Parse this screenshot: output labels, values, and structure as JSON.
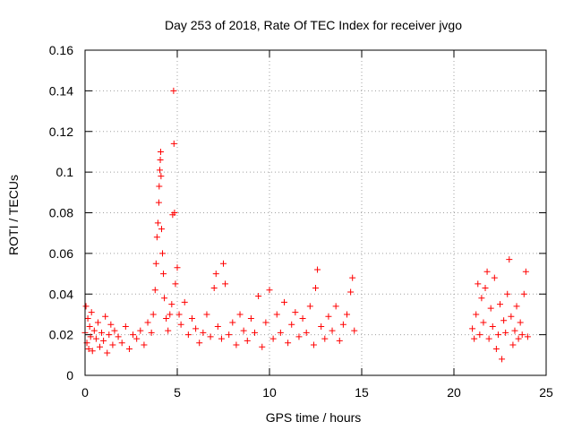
{
  "chart_data": {
    "type": "scatter",
    "title": "Day 253 of 2018, Rate Of TEC Index for receiver jvgo",
    "xlabel": "GPS time / hours",
    "ylabel": "ROTI / TECUs",
    "xlim": [
      0,
      25
    ],
    "ylim": [
      0,
      0.16
    ],
    "x_ticks": [
      0,
      5,
      10,
      15,
      20,
      25
    ],
    "x_tick_labels": [
      "0",
      "5",
      "10",
      "15",
      "20",
      "25"
    ],
    "y_ticks": [
      0,
      0.02,
      0.04,
      0.06,
      0.08,
      0.1,
      0.12,
      0.14,
      0.16
    ],
    "y_tick_labels": [
      "0",
      "0.02",
      "0.04",
      "0.06",
      "0.08",
      "0.1",
      "0.12",
      "0.14",
      "0.16"
    ],
    "grid": true,
    "marker": "+",
    "color": "#ff0000",
    "series": [
      {
        "name": "ROTI",
        "points": [
          [
            0.0,
            0.021
          ],
          [
            0.05,
            0.034
          ],
          [
            0.1,
            0.016
          ],
          [
            0.15,
            0.028
          ],
          [
            0.2,
            0.013
          ],
          [
            0.25,
            0.024
          ],
          [
            0.3,
            0.019
          ],
          [
            0.35,
            0.031
          ],
          [
            0.4,
            0.012
          ],
          [
            0.5,
            0.022
          ],
          [
            0.6,
            0.018
          ],
          [
            0.7,
            0.026
          ],
          [
            0.8,
            0.014
          ],
          [
            0.9,
            0.021
          ],
          [
            1.0,
            0.017
          ],
          [
            1.1,
            0.029
          ],
          [
            1.2,
            0.011
          ],
          [
            1.3,
            0.02
          ],
          [
            1.4,
            0.025
          ],
          [
            1.5,
            0.015
          ],
          [
            1.6,
            0.022
          ],
          [
            1.8,
            0.019
          ],
          [
            2.0,
            0.016
          ],
          [
            2.2,
            0.024
          ],
          [
            2.4,
            0.013
          ],
          [
            2.6,
            0.02
          ],
          [
            2.8,
            0.018
          ],
          [
            3.0,
            0.022
          ],
          [
            3.2,
            0.015
          ],
          [
            3.4,
            0.026
          ],
          [
            3.6,
            0.021
          ],
          [
            3.7,
            0.03
          ],
          [
            3.8,
            0.042
          ],
          [
            3.85,
            0.055
          ],
          [
            3.9,
            0.068
          ],
          [
            3.95,
            0.075
          ],
          [
            4.0,
            0.085
          ],
          [
            4.02,
            0.093
          ],
          [
            4.05,
            0.101
          ],
          [
            4.08,
            0.106
          ],
          [
            4.1,
            0.11
          ],
          [
            4.12,
            0.098
          ],
          [
            4.15,
            0.072
          ],
          [
            4.2,
            0.06
          ],
          [
            4.25,
            0.05
          ],
          [
            4.3,
            0.038
          ],
          [
            4.4,
            0.028
          ],
          [
            4.5,
            0.022
          ],
          [
            4.6,
            0.03
          ],
          [
            4.7,
            0.035
          ],
          [
            4.75,
            0.079
          ],
          [
            4.8,
            0.14
          ],
          [
            4.82,
            0.114
          ],
          [
            4.85,
            0.08
          ],
          [
            4.9,
            0.045
          ],
          [
            5.0,
            0.053
          ],
          [
            5.1,
            0.03
          ],
          [
            5.2,
            0.025
          ],
          [
            5.4,
            0.036
          ],
          [
            5.6,
            0.02
          ],
          [
            5.8,
            0.028
          ],
          [
            6.0,
            0.023
          ],
          [
            6.2,
            0.016
          ],
          [
            6.4,
            0.021
          ],
          [
            6.6,
            0.03
          ],
          [
            6.8,
            0.019
          ],
          [
            7.0,
            0.043
          ],
          [
            7.1,
            0.05
          ],
          [
            7.2,
            0.024
          ],
          [
            7.4,
            0.018
          ],
          [
            7.5,
            0.055
          ],
          [
            7.6,
            0.045
          ],
          [
            7.8,
            0.02
          ],
          [
            8.0,
            0.026
          ],
          [
            8.2,
            0.015
          ],
          [
            8.4,
            0.03
          ],
          [
            8.6,
            0.022
          ],
          [
            8.8,
            0.017
          ],
          [
            9.0,
            0.028
          ],
          [
            9.2,
            0.021
          ],
          [
            9.4,
            0.039
          ],
          [
            9.6,
            0.014
          ],
          [
            9.8,
            0.026
          ],
          [
            10.0,
            0.042
          ],
          [
            10.2,
            0.018
          ],
          [
            10.4,
            0.03
          ],
          [
            10.6,
            0.021
          ],
          [
            10.8,
            0.036
          ],
          [
            11.0,
            0.016
          ],
          [
            11.2,
            0.025
          ],
          [
            11.4,
            0.031
          ],
          [
            11.6,
            0.019
          ],
          [
            11.8,
            0.028
          ],
          [
            12.0,
            0.021
          ],
          [
            12.2,
            0.034
          ],
          [
            12.4,
            0.015
          ],
          [
            12.5,
            0.043
          ],
          [
            12.6,
            0.052
          ],
          [
            12.8,
            0.024
          ],
          [
            13.0,
            0.018
          ],
          [
            13.2,
            0.029
          ],
          [
            13.4,
            0.022
          ],
          [
            13.6,
            0.034
          ],
          [
            13.8,
            0.017
          ],
          [
            14.0,
            0.025
          ],
          [
            14.2,
            0.03
          ],
          [
            14.4,
            0.041
          ],
          [
            14.5,
            0.048
          ],
          [
            14.6,
            0.022
          ],
          [
            21.0,
            0.023
          ],
          [
            21.1,
            0.018
          ],
          [
            21.2,
            0.03
          ],
          [
            21.3,
            0.045
          ],
          [
            21.4,
            0.02
          ],
          [
            21.5,
            0.038
          ],
          [
            21.6,
            0.026
          ],
          [
            21.7,
            0.043
          ],
          [
            21.8,
            0.051
          ],
          [
            21.9,
            0.018
          ],
          [
            22.0,
            0.033
          ],
          [
            22.1,
            0.024
          ],
          [
            22.2,
            0.048
          ],
          [
            22.3,
            0.013
          ],
          [
            22.4,
            0.02
          ],
          [
            22.5,
            0.035
          ],
          [
            22.6,
            0.008
          ],
          [
            22.7,
            0.027
          ],
          [
            22.8,
            0.021
          ],
          [
            22.9,
            0.04
          ],
          [
            23.0,
            0.057
          ],
          [
            23.1,
            0.029
          ],
          [
            23.2,
            0.015
          ],
          [
            23.3,
            0.022
          ],
          [
            23.4,
            0.034
          ],
          [
            23.5,
            0.018
          ],
          [
            23.6,
            0.026
          ],
          [
            23.7,
            0.02
          ],
          [
            23.8,
            0.04
          ],
          [
            23.9,
            0.051
          ],
          [
            24.0,
            0.019
          ]
        ]
      }
    ]
  }
}
